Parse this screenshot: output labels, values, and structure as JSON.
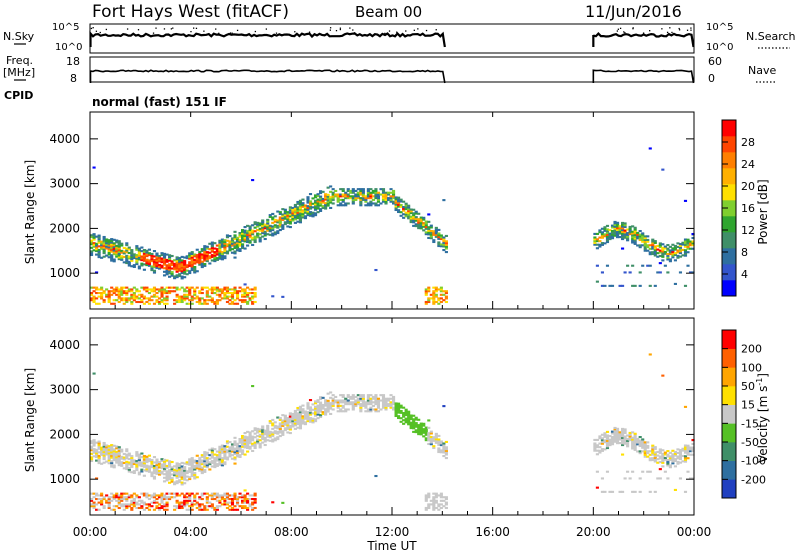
{
  "header": {
    "title": "Fort Hays West (fitACF)",
    "beam": "Beam 00",
    "date": "11/Jun/2016",
    "mode": "normal (fast) 151 IF"
  },
  "top_panels": {
    "nsky_label": "N.Sky",
    "nsky_ticks": [
      "10^5",
      "10^0"
    ],
    "nsky_right_ticks": [
      "10^5",
      "10^0"
    ],
    "nsearch_label": "N.Search",
    "freq_label": "Freq.",
    "freq_unit": "[MHz]",
    "freq_ticks": [
      "18",
      "8"
    ],
    "nave_ticks": [
      "60",
      "0"
    ],
    "nave_label": "Nave",
    "cpid_label": "CPID"
  },
  "chart_data": [
    {
      "type": "heatmap",
      "name": "power",
      "ylabel": "Slant Range [km]",
      "yticks": [
        "4000",
        "3000",
        "2000",
        "1000"
      ],
      "ylim": [
        200,
        4600
      ],
      "xlim": [
        "00:00",
        "24:00"
      ],
      "data_gaps_ut": [
        [
          14.1,
          20.0
        ]
      ],
      "colorbar": {
        "label": "Power [dB]",
        "ticks": [
          "28",
          "24",
          "20",
          "16",
          "12",
          "8",
          "4"
        ],
        "colors": [
          "#0000ff",
          "#3355cc",
          "#2e6fa0",
          "#3f8f68",
          "#2fa52f",
          "#7fcf2f",
          "#ffe000",
          "#ffb000",
          "#ff7f00",
          "#ff4500",
          "#ff0000"
        ]
      }
    },
    {
      "type": "heatmap",
      "name": "velocity",
      "ylabel": "Slant Range [km]",
      "yticks": [
        "4000",
        "3000",
        "2000",
        "1000"
      ],
      "ylim": [
        200,
        4600
      ],
      "xlabel": "Time UT",
      "xticks": [
        "00:00",
        "04:00",
        "08:00",
        "12:00",
        "16:00",
        "20:00",
        "00:00"
      ],
      "colorbar": {
        "label": "Velocity [m s",
        "label_sup": "-1",
        "label_end": "]",
        "ticks": [
          "200",
          "100",
          "50",
          "15",
          "-15",
          "-50",
          "-100",
          "-200"
        ],
        "colors": [
          "#2040c0",
          "#2e6fa0",
          "#3f8f68",
          "#55c025",
          "#c8c8c8",
          "#ffe000",
          "#ffa500",
          "#ff6000",
          "#ff0000"
        ]
      }
    }
  ]
}
